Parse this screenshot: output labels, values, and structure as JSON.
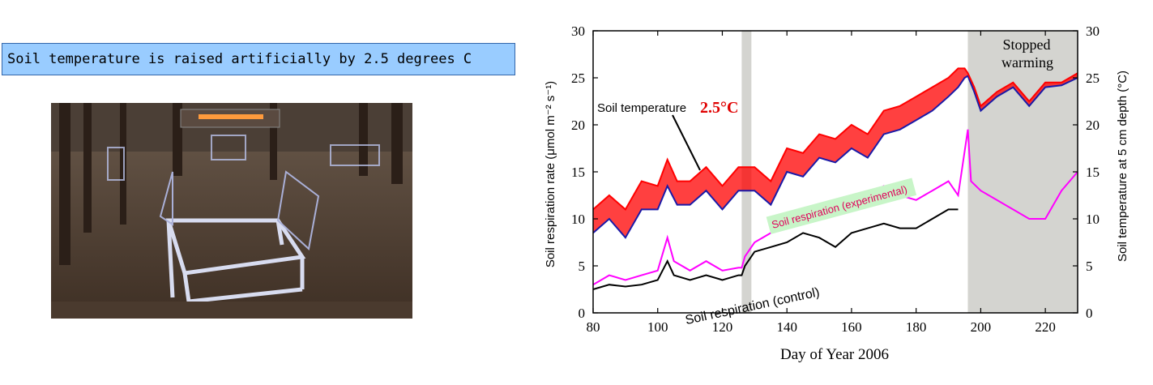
{
  "caption": "Soil temperature is raised artificially by 2.5 degrees C",
  "photo": {
    "subject": "field-warming-chamber-photo"
  },
  "colors": {
    "caption_bg": "#99ccff",
    "red": "#ff0000",
    "blue": "#1a1aa8",
    "magenta": "#ff00ff",
    "black": "#000000",
    "shade": "#d4d4d0",
    "label_bg": "#c8f5c8"
  },
  "chart_data": {
    "type": "line",
    "xlabel": "Day of Year 2006",
    "ylabel_left": "Soil respiration rate (μmol m⁻² s⁻¹)",
    "ylabel_right": "Soil temperature at 5 cm depth (°C)",
    "xlim": [
      80,
      230
    ],
    "ylim_left": [
      0,
      30
    ],
    "ylim_right": [
      0,
      30
    ],
    "x_ticks": [
      "80",
      "100",
      "120",
      "140",
      "160",
      "180",
      "200",
      "220"
    ],
    "y_ticks_left": [
      "0",
      "5",
      "10",
      "15",
      "20",
      "25",
      "30"
    ],
    "y_ticks_right": [
      "0",
      "5",
      "10",
      "15",
      "20",
      "25",
      "30"
    ],
    "shaded_regions": [
      {
        "x": [
          126,
          129
        ],
        "label": ""
      },
      {
        "x": [
          196,
          230
        ],
        "label": "Stopped warming"
      }
    ],
    "annotations": {
      "soil_temperature": "Soil temperature",
      "delta": "2.5°C",
      "experimental": "Soil respiration (experimental)",
      "control": "Soil respiration (control)",
      "stopped_1": "Stopped",
      "stopped_2": "warming"
    },
    "series": [
      {
        "key": "temp_warmed",
        "axis": "right",
        "x": [
          80,
          85,
          90,
          95,
          100,
          103,
          106,
          110,
          115,
          120,
          125,
          126,
          130,
          135,
          140,
          145,
          150,
          155,
          160,
          165,
          170,
          175,
          180,
          185,
          190,
          193,
          195,
          196,
          198,
          200,
          205,
          210,
          215,
          220,
          225,
          230
        ],
        "y": [
          11,
          12.5,
          11,
          14,
          13.5,
          16.3,
          14,
          14,
          15.5,
          13.5,
          15.5,
          15.5,
          15.5,
          14,
          17.5,
          17,
          19,
          18.5,
          20,
          19,
          21.5,
          22,
          23,
          24,
          25,
          26,
          26,
          25.5,
          24,
          22,
          23.5,
          24.5,
          22.5,
          24.5,
          24.5,
          25.5
        ]
      },
      {
        "key": "temp_control",
        "axis": "right",
        "x": [
          80,
          85,
          90,
          95,
          100,
          103,
          106,
          110,
          115,
          120,
          125,
          126,
          130,
          135,
          140,
          145,
          150,
          155,
          160,
          165,
          170,
          175,
          180,
          185,
          190,
          193,
          195,
          196,
          198,
          200,
          205,
          210,
          215,
          220,
          225,
          230
        ],
        "y": [
          8.5,
          10,
          8,
          11,
          11,
          13.5,
          11.5,
          11.5,
          13,
          11,
          13,
          13,
          13,
          11.5,
          15,
          14.5,
          16.5,
          16,
          17.5,
          16.5,
          19,
          19.5,
          20.5,
          21.5,
          23,
          24,
          25,
          25.2,
          23.5,
          21.5,
          23,
          24,
          22,
          24,
          24.2,
          25
        ]
      },
      {
        "key": "resp_experimental",
        "axis": "left",
        "x": [
          80,
          85,
          90,
          95,
          100,
          103,
          105,
          110,
          115,
          120,
          125,
          126,
          127,
          128,
          129,
          130,
          135,
          140,
          145,
          150,
          155,
          160,
          165,
          170,
          175,
          180,
          185,
          190,
          193,
          196,
          197,
          200,
          205,
          210,
          215,
          220,
          225,
          230
        ],
        "y": [
          3,
          4,
          3.5,
          4,
          4.5,
          8,
          5.5,
          4.5,
          5.5,
          4.5,
          4.8,
          4.8,
          6,
          6.5,
          7,
          7.5,
          8.5,
          10,
          11,
          11.5,
          10.5,
          12,
          12.5,
          13.5,
          12.5,
          12,
          13,
          14,
          12.5,
          19.5,
          14,
          13,
          12,
          11,
          10,
          10,
          13,
          15
        ]
      },
      {
        "key": "resp_control",
        "axis": "left",
        "x": [
          80,
          85,
          90,
          95,
          100,
          103,
          105,
          110,
          115,
          120,
          125,
          126,
          127,
          128,
          129,
          130,
          135,
          140,
          145,
          150,
          155,
          160,
          165,
          170,
          175,
          180,
          185,
          190,
          193
        ],
        "y": [
          2.5,
          3,
          2.8,
          3,
          3.5,
          5.5,
          4,
          3.5,
          4,
          3.5,
          4,
          4,
          5,
          5.5,
          6,
          6.5,
          7,
          7.5,
          8.5,
          8,
          7,
          8.5,
          9,
          9.5,
          9,
          9,
          10,
          11,
          11
        ]
      }
    ]
  }
}
